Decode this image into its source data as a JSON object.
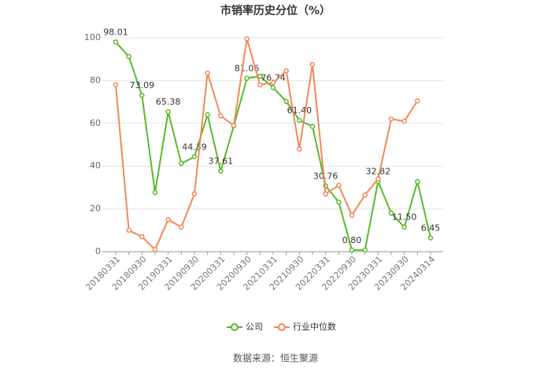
{
  "chart_data": {
    "type": "line",
    "title": "市销率历史分位（%）",
    "source": "数据来源：恒生聚源",
    "categories": [
      "20180331",
      null,
      "20180930",
      null,
      "20190331",
      null,
      "20190930",
      null,
      "20200331",
      null,
      "20200930",
      null,
      "20210331",
      null,
      "20210930",
      null,
      "20220331",
      null,
      "20220930",
      null,
      "20230331",
      null,
      "20230930",
      null,
      "20240314"
    ],
    "series": [
      {
        "name": "公司",
        "color": "#5ab92b",
        "values": [
          98.01,
          91.2,
          73.09,
          27.6,
          65.38,
          41.2,
          44.39,
          64,
          37.61,
          58.8,
          81.06,
          82,
          76.74,
          70.2,
          61.4,
          58.5,
          30.76,
          23.2,
          0.8,
          0.8,
          32.82,
          18,
          11.5,
          32.7,
          6.45
        ],
        "value_labels": [
          "98.01",
          null,
          "73.09",
          null,
          "65.38",
          null,
          "44.39",
          null,
          "37.61",
          null,
          "81.06",
          null,
          "76.74",
          null,
          "61.40",
          null,
          "30.76",
          null,
          "0.80",
          null,
          "32.82",
          null,
          "11.50",
          null,
          "6.45"
        ]
      },
      {
        "name": "行业中位数",
        "color": "#f0895a",
        "values": [
          78,
          10,
          7,
          1,
          15,
          11.5,
          27,
          83.5,
          63.5,
          59,
          99.5,
          78,
          79,
          84.5,
          48,
          87.5,
          27,
          31,
          17,
          26.5,
          34,
          62,
          61,
          70.5,
          null
        ]
      }
    ],
    "ylim": [
      0,
      100
    ],
    "yticks": [
      0,
      20,
      40,
      60,
      80,
      100
    ],
    "grid": true,
    "legend": "bottom"
  }
}
